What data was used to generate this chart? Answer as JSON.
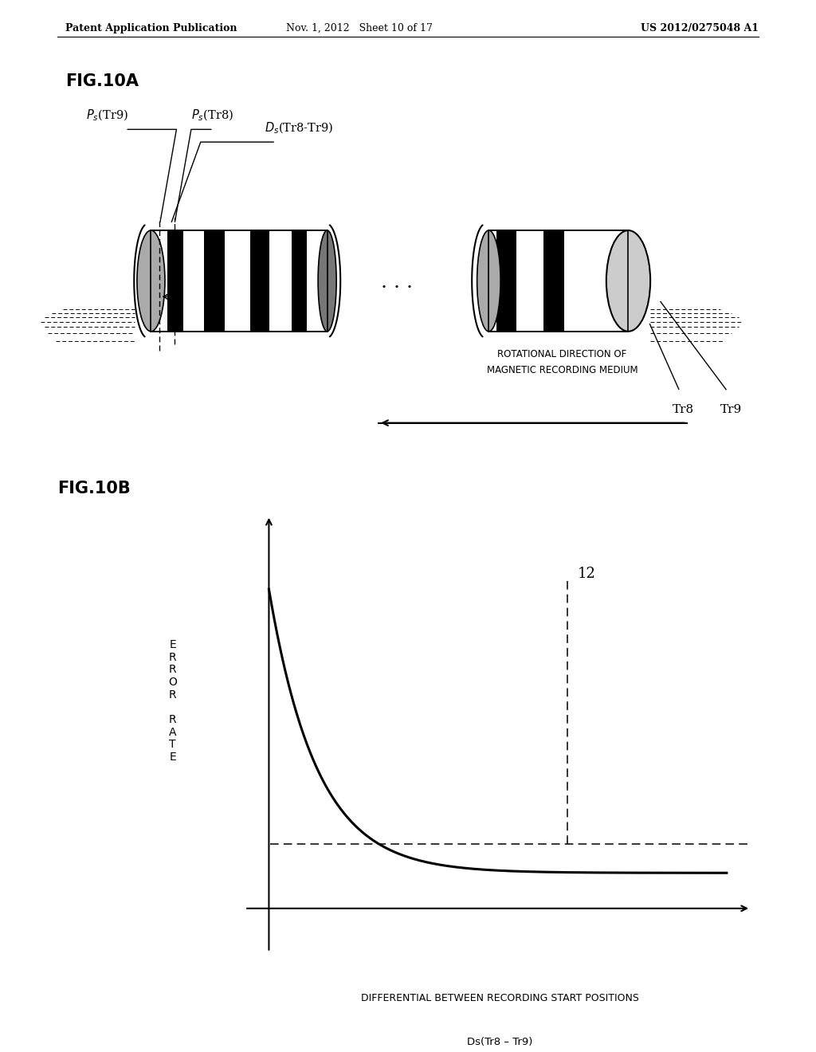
{
  "bg_color": "#ffffff",
  "header_left": "Patent Application Publication",
  "header_mid": "Nov. 1, 2012   Sheet 10 of 17",
  "header_right": "US 2012/0275048 A1",
  "fig10a_label": "FIG.10A",
  "fig10b_label": "FIG.10B",
  "ylabel_chars": "E\nR\nR\nO\nR\n \nR\nA\nT\nE",
  "xlabel_line1": "DIFFERENTIAL BETWEEN RECORDING START POSITIONS",
  "xlabel_line2": "Ds(Tr8 – Tr9)",
  "label_12": "12",
  "rotational_dir_line1": "ROTATIONAL DIRECTION OF",
  "rotational_dir_line2": "MAGNETIC RECORDING MEDIUM"
}
